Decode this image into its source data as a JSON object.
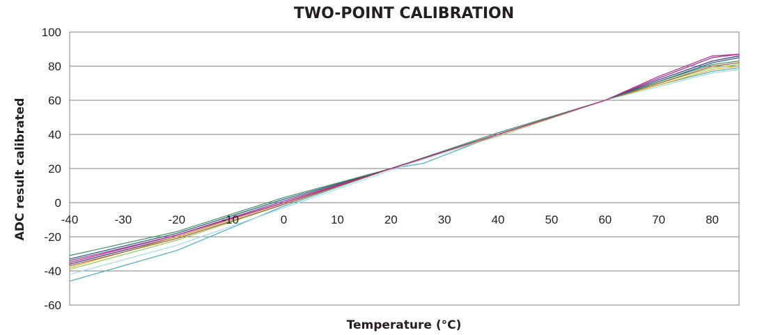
{
  "chart_data": {
    "type": "line",
    "title": "TWO-POINT CALIBRATION",
    "xlabel": "Temperature (°C)",
    "ylabel": "ADC result calibrated",
    "xlim": [
      -40,
      85
    ],
    "ylim": [
      -60,
      100
    ],
    "x_ticks": [
      "-40",
      "-30",
      "-20",
      "-10",
      "0",
      "10",
      "20",
      "30",
      "40",
      "50",
      "60",
      "70",
      "80"
    ],
    "y_ticks": [
      "100",
      "80",
      "60",
      "40",
      "20",
      "0",
      "-20",
      "-40",
      "-60"
    ],
    "x_tick_values": [
      -40,
      -30,
      -20,
      -10,
      0,
      10,
      20,
      30,
      40,
      50,
      60,
      70,
      80
    ],
    "y_tick_values": [
      100,
      80,
      60,
      40,
      20,
      0,
      -20,
      -40,
      -60
    ],
    "grid": "horizontal",
    "legend": "none",
    "series": [
      {
        "color": "#2e2a7a",
        "points": [
          [
            -40,
            -36
          ],
          [
            -20,
            -20
          ],
          [
            0,
            0
          ],
          [
            20,
            20
          ],
          [
            40,
            40
          ],
          [
            60,
            60
          ],
          [
            70,
            72
          ],
          [
            80,
            83
          ],
          [
            85,
            86
          ]
        ]
      },
      {
        "color": "#7b2d8e",
        "points": [
          [
            -40,
            -34
          ],
          [
            -20,
            -19
          ],
          [
            0,
            1
          ],
          [
            20,
            20
          ],
          [
            40,
            40
          ],
          [
            60,
            60
          ],
          [
            70,
            73
          ],
          [
            80,
            85
          ],
          [
            85,
            87
          ]
        ]
      },
      {
        "color": "#1f4e79",
        "points": [
          [
            -40,
            -33
          ],
          [
            -20,
            -18
          ],
          [
            0,
            2
          ],
          [
            20,
            20
          ],
          [
            40,
            40
          ],
          [
            60,
            60
          ],
          [
            70,
            71
          ],
          [
            80,
            82
          ],
          [
            85,
            85
          ]
        ]
      },
      {
        "color": "#3fa7c4",
        "points": [
          [
            -40,
            -46
          ],
          [
            -20,
            -28
          ],
          [
            0,
            -2
          ],
          [
            20,
            20
          ],
          [
            26,
            23
          ],
          [
            40,
            40
          ],
          [
            60,
            60
          ],
          [
            70,
            69
          ],
          [
            80,
            77
          ],
          [
            85,
            79
          ]
        ]
      },
      {
        "color": "#8cc84b",
        "points": [
          [
            -40,
            -39
          ],
          [
            -20,
            -22
          ],
          [
            0,
            -1
          ],
          [
            20,
            20
          ],
          [
            40,
            39
          ],
          [
            60,
            60
          ],
          [
            70,
            70
          ],
          [
            80,
            79
          ],
          [
            85,
            81
          ]
        ]
      },
      {
        "color": "#e0b020",
        "points": [
          [
            -40,
            -38
          ],
          [
            -20,
            -20
          ],
          [
            0,
            0
          ],
          [
            20,
            20
          ],
          [
            40,
            40
          ],
          [
            60,
            60
          ],
          [
            70,
            69
          ],
          [
            80,
            78
          ],
          [
            85,
            80
          ]
        ]
      },
      {
        "color": "#a0522d",
        "points": [
          [
            -40,
            -37
          ],
          [
            -20,
            -21
          ],
          [
            0,
            -1
          ],
          [
            20,
            20
          ],
          [
            40,
            40
          ],
          [
            60,
            60
          ],
          [
            70,
            70
          ],
          [
            80,
            80
          ],
          [
            85,
            82
          ]
        ]
      },
      {
        "color": "#2e8b57",
        "points": [
          [
            -40,
            -31
          ],
          [
            -20,
            -17
          ],
          [
            0,
            3
          ],
          [
            20,
            20
          ],
          [
            40,
            41
          ],
          [
            60,
            60
          ],
          [
            70,
            71
          ],
          [
            80,
            81
          ],
          [
            85,
            83
          ]
        ]
      },
      {
        "color": "#9fd8e6",
        "points": [
          [
            -40,
            -42
          ],
          [
            -20,
            -25
          ],
          [
            0,
            -3
          ],
          [
            20,
            19
          ],
          [
            40,
            40
          ],
          [
            60,
            60
          ],
          [
            70,
            68
          ],
          [
            80,
            76
          ],
          [
            85,
            78
          ]
        ]
      },
      {
        "color": "#c71585",
        "points": [
          [
            -40,
            -35
          ],
          [
            -20,
            -19
          ],
          [
            0,
            0
          ],
          [
            20,
            20
          ],
          [
            40,
            40
          ],
          [
            60,
            60
          ],
          [
            70,
            74
          ],
          [
            80,
            86
          ],
          [
            85,
            87
          ]
        ]
      }
    ]
  }
}
